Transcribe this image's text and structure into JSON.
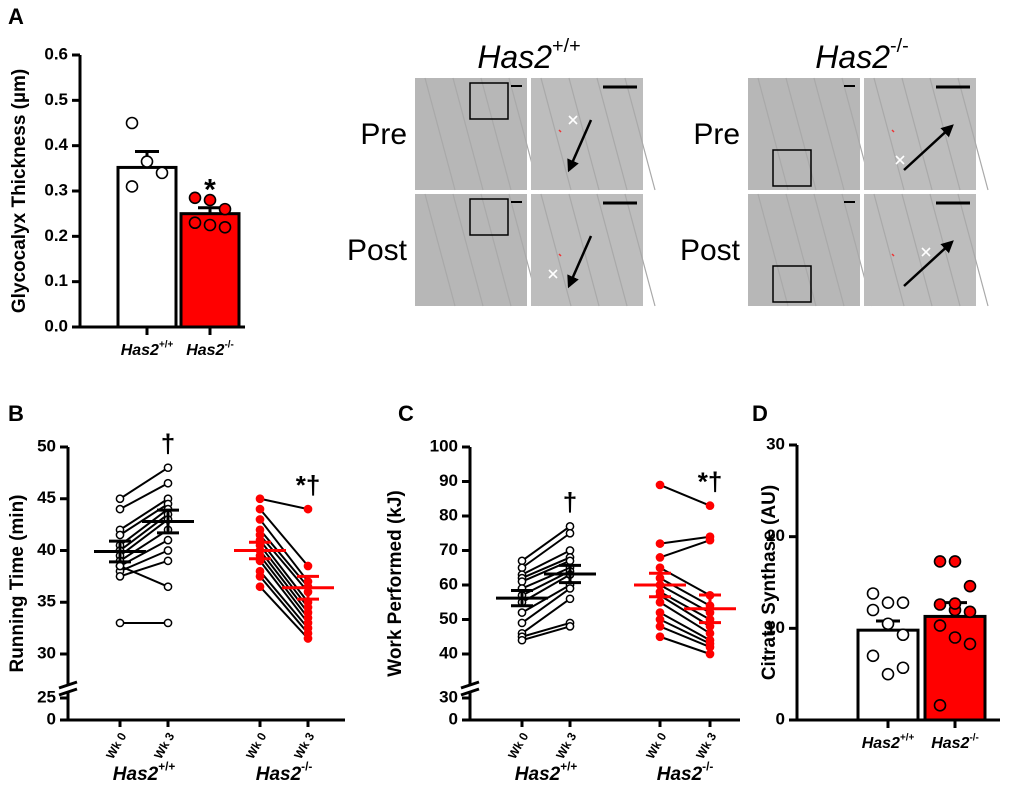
{
  "chart_data": [
    {
      "type": "bar",
      "label": "A",
      "ylabel": "Glycocalyx Thickness (µm)",
      "categories": [
        {
          "text": "Has2",
          "sup": "+/+"
        },
        {
          "text": "Has2",
          "sup": "-/-"
        }
      ],
      "values": [
        0.352,
        0.25
      ],
      "errors": [
        0.035,
        0.013
      ],
      "colors": [
        "#ffffff",
        "#ff0000"
      ],
      "points": [
        [
          0.45,
          0.365,
          0.34,
          0.31
        ],
        [
          0.285,
          0.28,
          0.26,
          0.23,
          0.225,
          0.22
        ]
      ],
      "annotations": [
        null,
        "*"
      ],
      "ylim": [
        0,
        0.6
      ],
      "yticks": [
        {
          "value": 0,
          "label": "0.0"
        },
        0.1,
        0.2,
        0.3,
        0.4,
        0.5,
        0.6
      ]
    },
    {
      "type": "paired",
      "label": "B",
      "ylabel": "Running Time (min)",
      "ylim": [
        0,
        50
      ],
      "ybreak": [
        25,
        30
      ],
      "yticks": [
        0,
        25,
        30,
        35,
        40,
        45,
        50
      ],
      "categories": [
        "Wk 0",
        "Wk 3"
      ],
      "line_color": "#000000",
      "series": [
        {
          "name": {
            "text": "Has2",
            "sup": "+/+"
          },
          "color": "#000000",
          "point_fill": "#ffffff",
          "wk0": [
            45,
            44,
            42,
            41.5,
            40.5,
            40,
            39.5,
            39,
            38.5,
            38,
            37.5,
            38.5,
            33
          ],
          "wk3": [
            48,
            46.5,
            45,
            44.5,
            44,
            43.5,
            43,
            42,
            41,
            40,
            39,
            36.5,
            33
          ],
          "mean": [
            39.9,
            42.8
          ],
          "sem": [
            1.0,
            1.1
          ],
          "annotation": "†"
        },
        {
          "name": {
            "text": "Has2",
            "sup": "-/-"
          },
          "color": "#ff0000",
          "point_fill": "#ff0000",
          "wk0": [
            45,
            44,
            43,
            42,
            41.5,
            41,
            40.5,
            40,
            39.5,
            39,
            38,
            37.5,
            36.5
          ],
          "wk3": [
            44,
            38.5,
            37,
            36.5,
            36,
            35,
            34.5,
            34,
            33.5,
            33,
            32.5,
            32,
            31.5
          ],
          "mean": [
            40.0,
            36.4
          ],
          "sem": [
            0.8,
            1.1
          ],
          "annotation": "*†"
        }
      ]
    },
    {
      "type": "paired",
      "label": "C",
      "ylabel": "Work Performed (kJ)",
      "ylim": [
        0,
        100
      ],
      "ybreak": [
        30,
        40
      ],
      "yticks": [
        0,
        30,
        40,
        50,
        60,
        70,
        80,
        90,
        100
      ],
      "categories": [
        "Wk 0",
        "Wk 3"
      ],
      "line_color": "#000000",
      "series": [
        {
          "name": {
            "text": "Has2",
            "sup": "+/+"
          },
          "color": "#000000",
          "point_fill": "#ffffff",
          "wk0": [
            67,
            65,
            63,
            62,
            61,
            59,
            57,
            55,
            52,
            49,
            46,
            45,
            44
          ],
          "wk3": [
            77,
            75,
            70,
            68,
            67,
            65,
            64,
            63,
            60,
            59,
            56,
            49,
            48
          ],
          "mean": [
            56.2,
            63.2
          ],
          "sem": [
            2.2,
            2.5
          ],
          "annotation": "†"
        },
        {
          "name": {
            "text": "Has2",
            "sup": "-/-"
          },
          "color": "#ff0000",
          "point_fill": "#ff0000",
          "wk0": [
            89,
            72,
            68,
            65,
            62,
            60,
            58,
            57,
            55,
            52,
            50,
            48,
            45
          ],
          "wk3": [
            83,
            74,
            73,
            57,
            54,
            52,
            50,
            48,
            46,
            44,
            43,
            42,
            40
          ],
          "mean": [
            60.0,
            53.1
          ],
          "sem": [
            3.4,
            4.0
          ],
          "annotation": "*†"
        }
      ]
    },
    {
      "type": "bar",
      "label": "D",
      "ylabel": "Citrate Synthase (AU)",
      "categories": [
        {
          "text": "Has2",
          "sup": "+/+"
        },
        {
          "text": "Has2",
          "sup": "-/-"
        }
      ],
      "values": [
        9.8,
        11.3
      ],
      "errors": [
        1.0,
        1.5
      ],
      "colors": [
        "#ffffff",
        "#ff0000"
      ],
      "points": [
        [
          13.8,
          12.8,
          12.8,
          12,
          10.5,
          9.3,
          7,
          5,
          5.7
        ],
        [
          17.3,
          17.3,
          14.6,
          12.6,
          12,
          11.8,
          10.3,
          9,
          8.3,
          1.6,
          12.7
        ]
      ],
      "annotations": [
        null,
        null
      ],
      "ylim": [
        0,
        30
      ],
      "yticks": [
        0,
        10,
        20,
        30
      ]
    }
  ],
  "images": {
    "groups": [
      {
        "title": {
          "text": "Has2",
          "sup": "+/+"
        },
        "rows": [
          "Pre",
          "Post"
        ]
      },
      {
        "title": {
          "text": "Has2",
          "sup": "-/-"
        },
        "rows": [
          "Pre",
          "Post"
        ]
      }
    ]
  }
}
